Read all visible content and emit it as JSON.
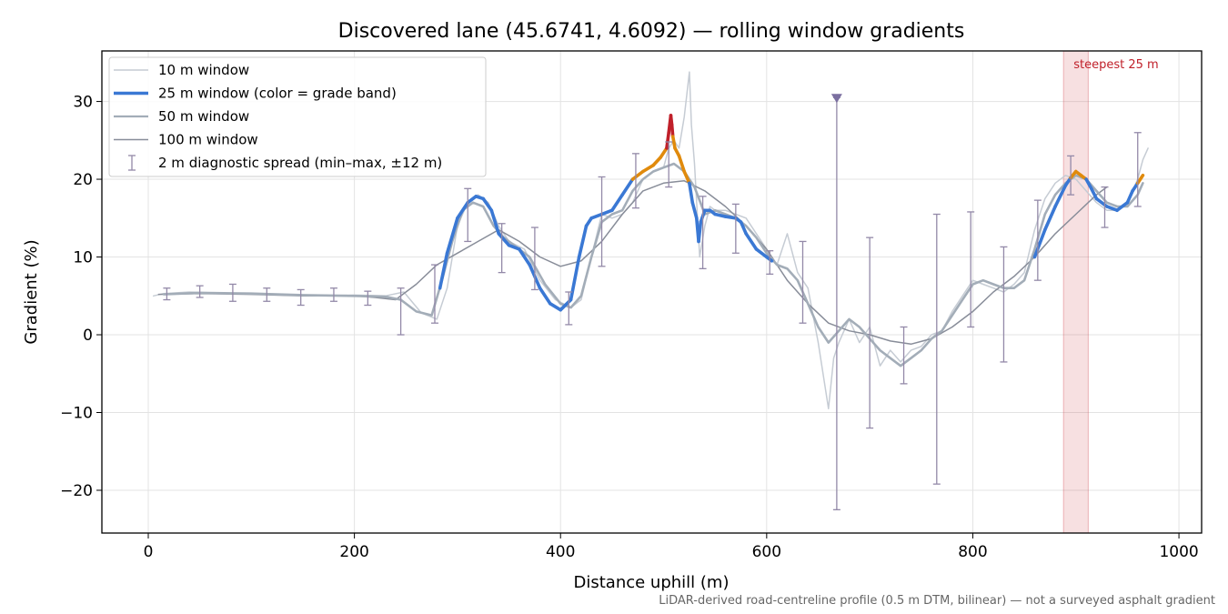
{
  "chart_data": {
    "type": "line",
    "title": "Discovered lane (45.6741, 4.6092) — rolling window gradients",
    "xlabel": "Distance uphill (m)",
    "ylabel": "Gradient (%)",
    "xlim": [
      -45,
      1022
    ],
    "ylim": [
      -25.5,
      36.5
    ],
    "xticks": [
      0,
      200,
      400,
      600,
      800,
      1000
    ],
    "yticks": [
      -20,
      -10,
      0,
      10,
      20,
      30
    ],
    "xtick_labels": [
      "0",
      "200",
      "400",
      "600",
      "800",
      "1000"
    ],
    "ytick_labels": [
      "−20",
      "−10",
      "0",
      "10",
      "20",
      "30"
    ],
    "grid": true,
    "legend_position": "top-left",
    "footnote": "LiDAR-derived road-centreline profile (0.5 m DTM, bilinear) — not a surveyed asphalt gradient",
    "annotation": {
      "text": "steepest 25 m",
      "x_range": [
        888,
        912
      ],
      "color": "#c0202a"
    },
    "grade_band_colors": {
      "under_20": "#3a78d4",
      "20_to_25": "#e08a0c",
      "over_25": "#c0202a"
    },
    "series": [
      {
        "name": "10 m window",
        "color": "#c6ccd4",
        "x": [
          5,
          15,
          40,
          80,
          120,
          160,
          200,
          230,
          248,
          265,
          280,
          290,
          300,
          310,
          320,
          330,
          340,
          350,
          365,
          380,
          395,
          410,
          420,
          430,
          440,
          450,
          460,
          470,
          480,
          490,
          500,
          505,
          510,
          515,
          520,
          525,
          527,
          530,
          535,
          540,
          545,
          550,
          560,
          570,
          580,
          590,
          600,
          610,
          620,
          630,
          640,
          650,
          660,
          665,
          670,
          680,
          690,
          700,
          710,
          720,
          730,
          740,
          750,
          760,
          770,
          780,
          790,
          800,
          810,
          820,
          830,
          840,
          850,
          860,
          870,
          880,
          890,
          900,
          910,
          920,
          930,
          940,
          950,
          960,
          965,
          970
        ],
        "y": [
          5.0,
          5.3,
          5.5,
          5.3,
          5.2,
          5.0,
          5.1,
          5.0,
          5.5,
          2.8,
          2.0,
          6.0,
          14.0,
          17.0,
          18.0,
          17.0,
          14.0,
          12.0,
          11.0,
          7.0,
          4.5,
          3.5,
          4.5,
          10.0,
          15.5,
          15.0,
          15.5,
          17.0,
          20.0,
          21.0,
          21.5,
          24.0,
          25.0,
          24.0,
          28.0,
          33.8,
          27.0,
          22.0,
          10.0,
          14.0,
          16.5,
          16.0,
          16.0,
          15.5,
          15.0,
          13.0,
          11.0,
          9.0,
          13.0,
          8.0,
          6.0,
          -1.0,
          -9.5,
          -3.0,
          -1.0,
          2.0,
          -1.0,
          1.0,
          -4.0,
          -2.0,
          -3.5,
          -2.0,
          -1.5,
          0.0,
          0.5,
          3.0,
          5.0,
          7.0,
          6.5,
          6.0,
          5.5,
          6.5,
          8.0,
          13.5,
          17.5,
          19.5,
          20.5,
          20.0,
          18.5,
          17.0,
          16.0,
          16.0,
          17.0,
          20.0,
          22.5,
          24.0
        ]
      },
      {
        "name": "25 m window (color = grade band)",
        "color": "#3a78d4",
        "x": [
          283,
          290,
          300,
          310,
          318,
          325,
          333,
          340,
          350,
          360,
          370,
          380,
          390,
          400,
          410,
          418,
          425,
          430,
          440,
          450,
          460,
          470,
          480,
          490,
          497,
          503,
          505,
          507,
          508,
          509,
          511,
          515,
          520,
          525,
          528,
          532,
          534,
          536,
          540,
          545,
          550,
          560,
          570,
          575,
          580,
          590,
          600,
          605
        ],
        "y": [
          6.0,
          10.5,
          15.0,
          17.0,
          17.8,
          17.5,
          16.0,
          13.0,
          11.5,
          11.0,
          9.0,
          6.0,
          4.0,
          3.2,
          4.5,
          10.0,
          14.0,
          15.0,
          15.5,
          16.0,
          18.0,
          20.0,
          21.0,
          21.8,
          22.8,
          24.0,
          26.0,
          28.2,
          27.0,
          25.5,
          24.0,
          23.0,
          21.0,
          19.5,
          17.0,
          15.0,
          12.0,
          14.5,
          16.0,
          16.0,
          15.5,
          15.2,
          15.0,
          14.5,
          13.0,
          11.0,
          10.0,
          9.5
        ]
      },
      {
        "name": "25 m window (color = grade band)",
        "color": "#3a78d4",
        "x": [
          860,
          870,
          880,
          890,
          895,
          900,
          905,
          910,
          915,
          920,
          930,
          940,
          950,
          955,
          960,
          965
        ],
        "y": [
          10.0,
          13.5,
          16.5,
          19.2,
          20.2,
          21.0,
          20.5,
          20.0,
          18.8,
          17.5,
          16.5,
          16.0,
          17.0,
          18.5,
          19.5,
          20.5
        ]
      },
      {
        "name": "50 m window",
        "color": "#a3adb8",
        "x": [
          15,
          50,
          100,
          150,
          200,
          230,
          245,
          260,
          275,
          285,
          295,
          305,
          315,
          325,
          335,
          345,
          355,
          370,
          385,
          400,
          410,
          420,
          430,
          440,
          450,
          460,
          470,
          480,
          490,
          500,
          510,
          520,
          530,
          540,
          550,
          560,
          570,
          580,
          590,
          600,
          610,
          620,
          630,
          640,
          650,
          660,
          670,
          680,
          690,
          700,
          710,
          720,
          730,
          740,
          750,
          760,
          770,
          780,
          790,
          800,
          810,
          820,
          830,
          840,
          850,
          860,
          870,
          880,
          890,
          900,
          910,
          920,
          930,
          940,
          950,
          960,
          965
        ],
        "y": [
          5.2,
          5.4,
          5.3,
          5.1,
          5.0,
          4.9,
          4.5,
          3.0,
          2.5,
          7.0,
          12.0,
          16.0,
          17.0,
          16.5,
          14.0,
          12.5,
          11.5,
          10.0,
          6.5,
          4.0,
          3.5,
          5.0,
          10.0,
          14.5,
          15.5,
          16.0,
          18.5,
          20.0,
          21.0,
          21.5,
          22.0,
          21.0,
          19.0,
          15.5,
          16.0,
          15.5,
          15.0,
          14.0,
          12.5,
          10.5,
          9.0,
          8.5,
          7.0,
          4.0,
          1.0,
          -1.0,
          0.5,
          2.0,
          1.0,
          -0.5,
          -2.0,
          -3.0,
          -4.0,
          -3.0,
          -2.0,
          -0.5,
          0.5,
          2.5,
          4.5,
          6.5,
          7.0,
          6.5,
          6.0,
          6.0,
          7.0,
          11.0,
          15.5,
          18.0,
          19.5,
          20.5,
          20.0,
          18.5,
          17.0,
          16.5,
          16.5,
          18.0,
          19.5
        ]
      },
      {
        "name": "100 m window",
        "color": "#888d99",
        "x": [
          10,
          50,
          100,
          150,
          200,
          220,
          240,
          260,
          280,
          300,
          320,
          340,
          360,
          380,
          400,
          420,
          440,
          460,
          480,
          500,
          520,
          540,
          560,
          580,
          600,
          620,
          640,
          660,
          680,
          700,
          720,
          740,
          760,
          780,
          800,
          820,
          840,
          860,
          880,
          900,
          920,
          930
        ],
        "y": [
          5.2,
          5.3,
          5.2,
          5.0,
          5.0,
          4.8,
          4.5,
          6.5,
          9.0,
          10.5,
          12.0,
          13.5,
          12.0,
          10.0,
          8.8,
          9.5,
          12.0,
          15.5,
          18.5,
          19.5,
          19.8,
          18.5,
          16.5,
          14.0,
          11.0,
          7.0,
          4.0,
          1.5,
          0.5,
          0.0,
          -0.8,
          -1.2,
          -0.5,
          1.0,
          3.0,
          5.5,
          7.5,
          10.0,
          13.0,
          15.5,
          18.0,
          19.0
        ]
      },
      {
        "name": "2 m diagnostic spread (min–max, ±12 m)",
        "color": "#9389a8",
        "errorbars": [
          {
            "x": 18,
            "min": 4.5,
            "max": 6.0
          },
          {
            "x": 50,
            "min": 4.8,
            "max": 6.3
          },
          {
            "x": 82,
            "min": 4.3,
            "max": 6.5
          },
          {
            "x": 115,
            "min": 4.3,
            "max": 6.0
          },
          {
            "x": 148,
            "min": 3.8,
            "max": 5.8
          },
          {
            "x": 180,
            "min": 4.3,
            "max": 6.0
          },
          {
            "x": 213,
            "min": 3.8,
            "max": 5.6
          },
          {
            "x": 245,
            "min": 0.0,
            "max": 6.0
          },
          {
            "x": 278,
            "min": 1.5,
            "max": 9.0
          },
          {
            "x": 310,
            "min": 12.0,
            "max": 18.8
          },
          {
            "x": 343,
            "min": 8.0,
            "max": 14.3
          },
          {
            "x": 375,
            "min": 5.8,
            "max": 13.8
          },
          {
            "x": 408,
            "min": 1.3,
            "max": 5.5
          },
          {
            "x": 440,
            "min": 8.8,
            "max": 20.3
          },
          {
            "x": 473,
            "min": 16.3,
            "max": 23.3
          },
          {
            "x": 505,
            "min": 19.0,
            "max": 24.8
          },
          {
            "x": 538,
            "min": 8.5,
            "max": 17.8
          },
          {
            "x": 570,
            "min": 10.5,
            "max": 16.8
          },
          {
            "x": 603,
            "min": 7.8,
            "max": 10.8
          },
          {
            "x": 635,
            "min": 1.5,
            "max": 12.0
          },
          {
            "x": 668,
            "min": -22.5,
            "max": 30.5
          },
          {
            "x": 700,
            "min": -12.0,
            "max": 12.5
          },
          {
            "x": 733,
            "min": -6.3,
            "max": 1.0
          },
          {
            "x": 765,
            "min": -19.2,
            "max": 15.5
          },
          {
            "x": 798,
            "min": 1.0,
            "max": 15.8
          },
          {
            "x": 830,
            "min": -3.5,
            "max": 11.3
          },
          {
            "x": 863,
            "min": 7.0,
            "max": 17.3
          },
          {
            "x": 895,
            "min": 18.0,
            "max": 23.0
          },
          {
            "x": 928,
            "min": 13.8,
            "max": 19.0
          },
          {
            "x": 960,
            "min": 16.5,
            "max": 26.0
          }
        ]
      }
    ]
  }
}
